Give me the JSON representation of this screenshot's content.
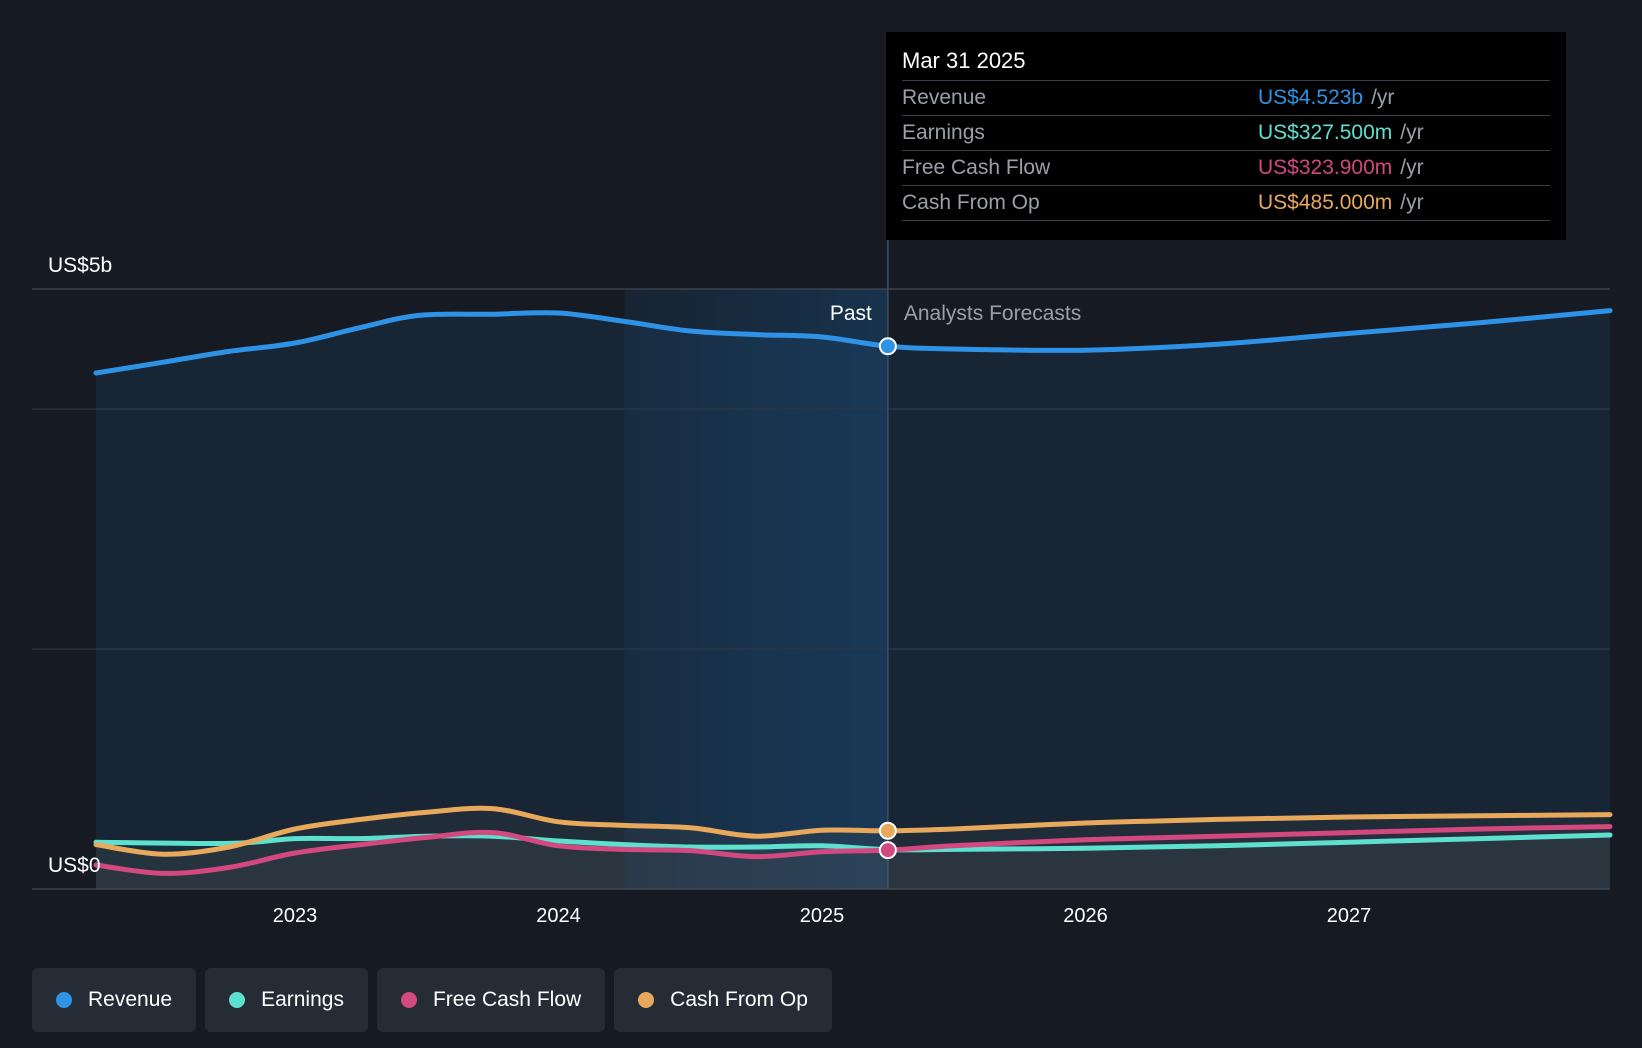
{
  "chart_data": {
    "type": "area",
    "x_axis": {
      "ticks": [
        "2023",
        "2024",
        "2025",
        "2026",
        "2027"
      ],
      "range": [
        "2022-04",
        "2027-12"
      ]
    },
    "y_axis": {
      "label_top": "US$5b",
      "label_bottom": "US$0",
      "range": [
        0,
        5
      ]
    },
    "divider": {
      "date": "2025-03-31",
      "past_label": "Past",
      "forecast_label": "Analysts Forecasts"
    },
    "series": [
      {
        "name": "Revenue",
        "color": "#2e93e6",
        "x": [
          2022.25,
          2022.5,
          2022.75,
          2023.0,
          2023.25,
          2023.47,
          2023.75,
          2024.0,
          2024.25,
          2024.5,
          2024.75,
          2025.0,
          2025.25,
          2025.5,
          2026.0,
          2026.5,
          2027.0,
          2027.5,
          2028.0
        ],
        "values": [
          4.3,
          4.39,
          4.48,
          4.55,
          4.68,
          4.78,
          4.79,
          4.8,
          4.73,
          4.65,
          4.62,
          4.6,
          4.523,
          4.5,
          4.49,
          4.54,
          4.63,
          4.72,
          4.82
        ]
      },
      {
        "name": "Earnings",
        "color": "#5ee0cf",
        "x": [
          2022.25,
          2022.75,
          2023.0,
          2023.25,
          2023.5,
          2023.75,
          2024.0,
          2024.25,
          2024.5,
          2024.75,
          2025.0,
          2025.25,
          2025.5,
          2026.0,
          2026.5,
          2027.0,
          2027.5,
          2028.0
        ],
        "values": [
          0.39,
          0.38,
          0.42,
          0.42,
          0.44,
          0.44,
          0.4,
          0.37,
          0.35,
          0.35,
          0.36,
          0.3275,
          0.33,
          0.34,
          0.36,
          0.39,
          0.42,
          0.45
        ]
      },
      {
        "name": "Free Cash Flow",
        "color": "#d2487f",
        "x": [
          2022.25,
          2022.5,
          2022.75,
          2023.0,
          2023.25,
          2023.5,
          2023.75,
          2024.0,
          2024.25,
          2024.5,
          2024.75,
          2025.0,
          2025.25,
          2025.5,
          2026.0,
          2026.5,
          2027.0,
          2027.5,
          2028.0
        ],
        "values": [
          0.2,
          0.13,
          0.18,
          0.3,
          0.37,
          0.43,
          0.47,
          0.36,
          0.33,
          0.32,
          0.27,
          0.31,
          0.3239,
          0.36,
          0.41,
          0.44,
          0.47,
          0.5,
          0.52
        ]
      },
      {
        "name": "Cash From Op",
        "color": "#e8a95c",
        "x": [
          2022.25,
          2022.5,
          2022.75,
          2023.0,
          2023.25,
          2023.5,
          2023.75,
          2024.0,
          2024.25,
          2024.5,
          2024.75,
          2025.0,
          2025.25,
          2025.5,
          2026.0,
          2026.5,
          2027.0,
          2027.5,
          2028.0
        ],
        "values": [
          0.37,
          0.29,
          0.35,
          0.5,
          0.58,
          0.64,
          0.67,
          0.56,
          0.53,
          0.51,
          0.44,
          0.49,
          0.485,
          0.5,
          0.55,
          0.58,
          0.6,
          0.61,
          0.62
        ]
      }
    ],
    "highlight_date": "Mar 31 2025"
  },
  "tooltip": {
    "date": "Mar 31 2025",
    "unit": "/yr",
    "rows": [
      {
        "label": "Revenue",
        "value": "US$4.523b",
        "color": "#2e93e6"
      },
      {
        "label": "Earnings",
        "value": "US$327.500m",
        "color": "#5ee0cf"
      },
      {
        "label": "Free Cash Flow",
        "value": "US$323.900m",
        "color": "#d2487f"
      },
      {
        "label": "Cash From Op",
        "value": "US$485.000m",
        "color": "#e8a95c"
      }
    ]
  },
  "legend": [
    {
      "label": "Revenue",
      "color": "#2e93e6"
    },
    {
      "label": "Earnings",
      "color": "#5ee0cf"
    },
    {
      "label": "Free Cash Flow",
      "color": "#d2487f"
    },
    {
      "label": "Cash From Op",
      "color": "#e8a95c"
    }
  ]
}
